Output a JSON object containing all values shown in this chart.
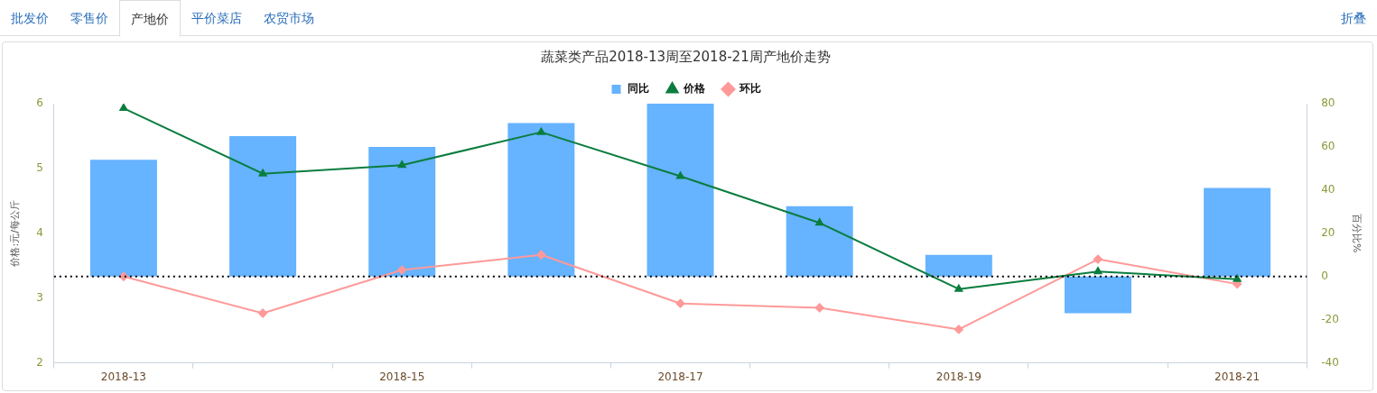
{
  "chart_data": {
    "type": "bar",
    "title": "蔬菜类产品2018-13周至2018-21周产地价走势",
    "categories": [
      "2018-13",
      null,
      "2018-15",
      null,
      "2018-17",
      null,
      "2018-19",
      null,
      "2018-21"
    ],
    "series": [
      {
        "name": "同比",
        "axis": "y2",
        "color": "#66b3ff",
        "values": [
          54,
          65,
          60,
          71,
          80,
          32.5,
          10,
          -17,
          41
        ]
      },
      {
        "name": "价格",
        "type": "line",
        "color": "#0a7d3e",
        "marker": "triangle",
        "values": [
          5.93,
          4.92,
          5.05,
          5.56,
          4.88,
          4.16,
          3.14,
          3.41,
          3.29
        ]
      },
      {
        "name": "环比",
        "type": "line",
        "axis": "y2",
        "color": "#ff9999",
        "marker": "diamond",
        "values": [
          0,
          -17,
          3,
          10,
          -12.5,
          -14.5,
          -24.5,
          8,
          -3.5
        ]
      }
    ],
    "ylabel": "价格:元/每公斤",
    "y2label": "百分比%",
    "ylim": [
      2,
      6
    ],
    "yticks": [
      2,
      3,
      4,
      5,
      6
    ],
    "y2lim": [
      -40,
      80
    ],
    "y2ticks": [
      -40,
      -20,
      0,
      20,
      40,
      60,
      80
    ],
    "ref_lines": [
      {
        "axis": "y2",
        "value": 0,
        "color": "#000000",
        "line_style": "dotted"
      }
    ],
    "legend": "top",
    "grid": false,
    "annotations": [
      "批发价",
      "零售价",
      "产地价",
      "平价菜店",
      "农贸市场",
      "折叠"
    ]
  }
}
